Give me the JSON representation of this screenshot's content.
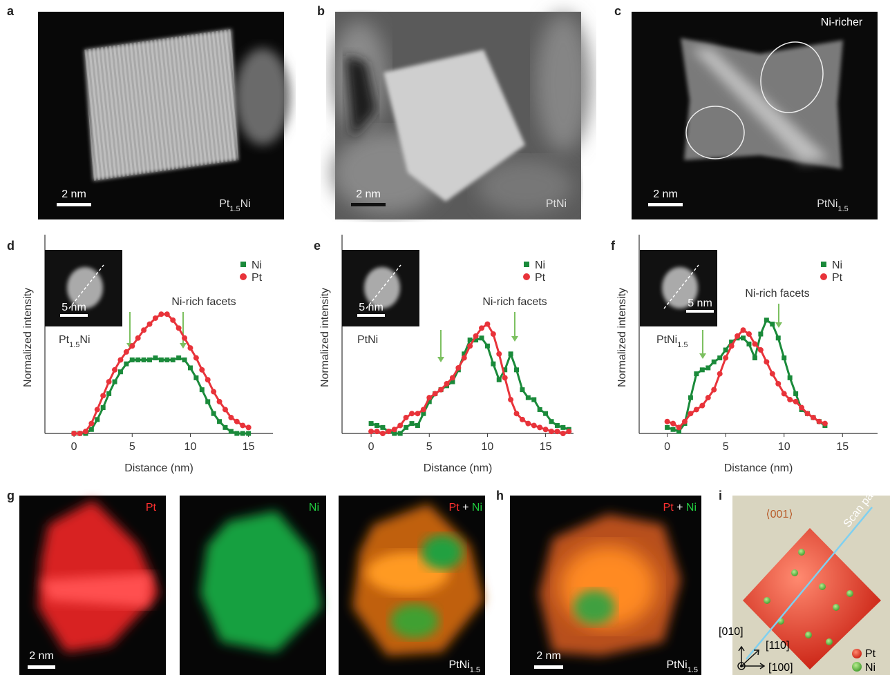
{
  "panels": {
    "a": {
      "letter": "a",
      "scale_bar": "2 nm",
      "label": [
        "Pt",
        "1.5",
        "Ni"
      ]
    },
    "b": {
      "letter": "b",
      "scale_bar": "2 nm",
      "label": [
        "PtNi"
      ]
    },
    "c": {
      "letter": "c",
      "note": "Ni-richer",
      "scale_bar": "2 nm",
      "label": [
        "PtNi",
        "1.5"
      ]
    },
    "g": {
      "letter": "g",
      "scale_bar": "2 nm",
      "maps": [
        {
          "label": [
            "Pt"
          ]
        },
        {
          "label": [
            "Ni"
          ]
        },
        {
          "label": [
            "Pt",
            "+",
            "Ni"
          ]
        }
      ],
      "composition": [
        "PtNi",
        "1.5"
      ]
    },
    "h": {
      "letter": "h",
      "scale_bar": "2 nm",
      "map_label": [
        "Pt",
        "+",
        "Ni"
      ],
      "composition": [
        "PtNi",
        "1.5"
      ]
    },
    "i": {
      "letter": "i",
      "facet": "⟨001⟩",
      "path": "Scan path",
      "axes": [
        "[010]",
        "[110]",
        "[100]"
      ],
      "legend": [
        "Pt",
        "Ni"
      ]
    }
  },
  "chart_data": [
    {
      "type": "line",
      "panel": "d",
      "x_label": "Distance (nm)",
      "y_label": "Normalized intensity",
      "annotation": "Ni-rich facets",
      "inset_scale": "5 nm",
      "inset_label": [
        "Pt",
        "1.5",
        "Ni"
      ],
      "x": [
        0,
        0.5,
        1,
        1.5,
        2,
        2.5,
        3,
        3.5,
        4,
        4.5,
        5,
        5.5,
        6,
        6.5,
        7,
        7.5,
        8,
        8.5,
        9,
        9.5,
        10,
        10.5,
        11,
        11.5,
        12,
        12.5,
        13,
        13.5,
        14,
        14.5,
        15
      ],
      "xlim": [
        -2.5,
        17.1
      ],
      "xticks": [
        0,
        5,
        10,
        15
      ],
      "ylim": [
        0,
        1
      ],
      "series": [
        {
          "name": "Ni",
          "color": "#1a8a3a",
          "marker": "square",
          "values": [
            0,
            0,
            0,
            0.02,
            0.07,
            0.13,
            0.2,
            0.26,
            0.31,
            0.35,
            0.37,
            0.37,
            0.37,
            0.37,
            0.38,
            0.37,
            0.37,
            0.37,
            0.38,
            0.37,
            0.33,
            0.28,
            0.22,
            0.16,
            0.1,
            0.06,
            0.03,
            0.01,
            0,
            0,
            0
          ]
        },
        {
          "name": "Pt",
          "color": "#e8333a",
          "marker": "circle",
          "values": [
            0,
            0,
            0.01,
            0.05,
            0.12,
            0.19,
            0.26,
            0.32,
            0.37,
            0.41,
            0.44,
            0.48,
            0.52,
            0.55,
            0.58,
            0.6,
            0.6,
            0.57,
            0.53,
            0.48,
            0.43,
            0.38,
            0.32,
            0.27,
            0.21,
            0.16,
            0.12,
            0.08,
            0.06,
            0.04,
            0.03
          ]
        }
      ]
    },
    {
      "type": "line",
      "panel": "e",
      "x_label": "Distance (nm)",
      "y_label": "Normalized intensity",
      "annotation": "Ni-rich facets",
      "inset_scale": "5 nm",
      "inset_label": [
        "PtNi"
      ],
      "x": [
        0,
        0.5,
        1,
        1.5,
        2,
        2.5,
        3,
        3.5,
        4,
        4.5,
        5,
        5.5,
        6,
        6.5,
        7,
        7.5,
        8,
        8.5,
        9,
        9.5,
        10,
        10.5,
        11,
        11.5,
        12,
        12.5,
        13,
        13.5,
        14,
        14.5,
        15,
        15.5,
        16,
        16.5,
        17
      ],
      "xlim": [
        -2.5,
        17.4
      ],
      "xticks": [
        0,
        5,
        10,
        15
      ],
      "ylim": [
        0,
        1
      ],
      "series": [
        {
          "name": "Ni",
          "color": "#1a8a3a",
          "marker": "square",
          "values": [
            0.05,
            0.04,
            0.03,
            0.01,
            0,
            0,
            0.03,
            0.05,
            0.04,
            0.1,
            0.16,
            0.2,
            0.22,
            0.24,
            0.26,
            0.32,
            0.4,
            0.47,
            0.47,
            0.48,
            0.44,
            0.35,
            0.27,
            0.32,
            0.4,
            0.32,
            0.22,
            0.18,
            0.17,
            0.12,
            0.1,
            0.06,
            0.04,
            0.03,
            0.02
          ]
        },
        {
          "name": "Pt",
          "color": "#e8333a",
          "marker": "circle",
          "values": [
            0.01,
            0.01,
            0,
            0.01,
            0.02,
            0.04,
            0.08,
            0.1,
            0.1,
            0.12,
            0.18,
            0.2,
            0.22,
            0.25,
            0.28,
            0.33,
            0.38,
            0.44,
            0.49,
            0.53,
            0.55,
            0.5,
            0.4,
            0.28,
            0.17,
            0.1,
            0.07,
            0.05,
            0.04,
            0.03,
            0.02,
            0.01,
            0.01,
            0,
            0.01
          ]
        }
      ]
    },
    {
      "type": "line",
      "panel": "f",
      "x_label": "Distance (nm)",
      "y_label": "Normalized intensity",
      "annotation": "Ni-rich facets",
      "inset_scale": "5 nm",
      "inset_label": [
        "PtNi",
        "1.5"
      ],
      "x": [
        0,
        0.5,
        1,
        1.5,
        2,
        2.5,
        3,
        3.5,
        4,
        4.5,
        5,
        5.5,
        6,
        6.5,
        7,
        7.5,
        8,
        8.5,
        9,
        9.5,
        10,
        10.5,
        11,
        11.5,
        12,
        12.5,
        13,
        13.5
      ],
      "xlim": [
        -2.4,
        18
      ],
      "xticks": [
        0,
        5,
        10,
        15
      ],
      "ylim": [
        0,
        1
      ],
      "series": [
        {
          "name": "Ni",
          "color": "#1a8a3a",
          "marker": "square",
          "values": [
            0.03,
            0.02,
            0.01,
            0.05,
            0.18,
            0.3,
            0.32,
            0.33,
            0.36,
            0.38,
            0.42,
            0.46,
            0.48,
            0.48,
            0.45,
            0.38,
            0.5,
            0.57,
            0.55,
            0.48,
            0.38,
            0.28,
            0.2,
            0.12,
            0.1,
            0.08,
            0.06,
            0.04
          ]
        },
        {
          "name": "Pt",
          "color": "#e8333a",
          "marker": "circle",
          "values": [
            0.06,
            0.05,
            0.03,
            0.06,
            0.1,
            0.12,
            0.14,
            0.18,
            0.22,
            0.3,
            0.38,
            0.44,
            0.49,
            0.52,
            0.5,
            0.45,
            0.42,
            0.36,
            0.3,
            0.25,
            0.2,
            0.17,
            0.16,
            0.13,
            0.1,
            0.08,
            0.06,
            0.05
          ]
        }
      ]
    }
  ]
}
